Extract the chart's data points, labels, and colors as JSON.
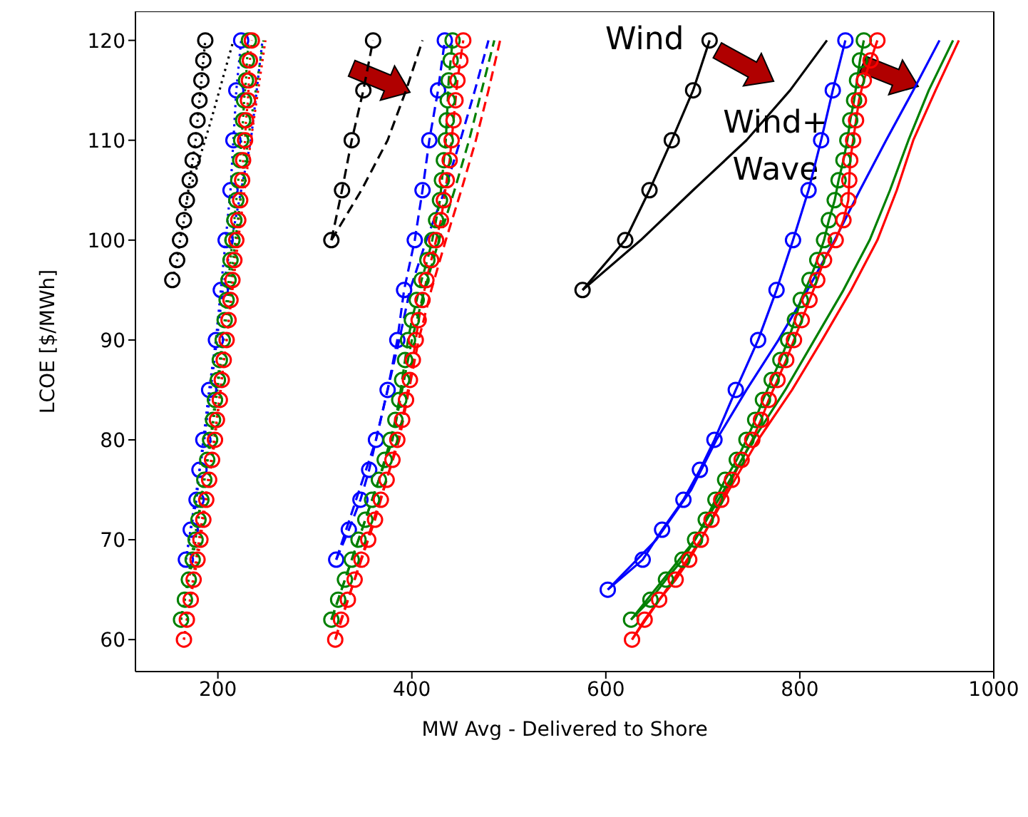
{
  "chart_data": {
    "type": "line",
    "xlabel": "MW Avg - Delivered to Shore",
    "ylabel": "LCOE [$/MWh]",
    "xlim": [
      115,
      1000
    ],
    "ylim": [
      56.8,
      122.9
    ],
    "xticks": [
      200,
      400,
      600,
      800,
      1000
    ],
    "yticks": [
      60,
      70,
      80,
      90,
      100,
      110,
      120
    ],
    "grid": false,
    "legend": false,
    "annotations": [
      "Wind",
      "Wind+\nWave"
    ],
    "series": [
      {
        "color": "#000000",
        "marker": "circle",
        "line_style": "dotted",
        "x": [
          153,
          158,
          161,
          165,
          168,
          171,
          174,
          177,
          179,
          181,
          183,
          185,
          187
        ],
        "values": [
          96,
          98,
          100,
          102,
          104,
          106,
          108,
          110,
          112,
          114,
          116,
          118,
          120
        ]
      },
      {
        "color": "#000000",
        "marker": "none",
        "line_style": "dotted",
        "x": [
          168,
          193,
          216
        ],
        "values": [
          104,
          112,
          120
        ]
      },
      {
        "color": "#0000ff",
        "marker": "circle",
        "line_style": "dotted",
        "x": [
          167,
          172,
          178,
          181,
          185,
          191,
          198,
          203,
          208,
          213,
          216,
          219,
          224
        ],
        "values": [
          68,
          71,
          74,
          77,
          80,
          85,
          90,
          95,
          100,
          105,
          110,
          115,
          120
        ]
      },
      {
        "color": "#0000ff",
        "marker": "none",
        "line_style": "dotted",
        "x": [
          167,
          186,
          199,
          205,
          214,
          224,
          234,
          240,
          246
        ],
        "values": [
          68,
          80,
          90,
          95,
          100,
          105,
          110,
          115,
          120
        ]
      },
      {
        "color": "#008000",
        "marker": "circle",
        "line_style": "dotted",
        "x": [
          162,
          166,
          170,
          174,
          177,
          180,
          183,
          186,
          189,
          192,
          195,
          197,
          200,
          202,
          205,
          207,
          209,
          211,
          213,
          215,
          217,
          219,
          221,
          223,
          224,
          226,
          227,
          229,
          230,
          232
        ],
        "values": [
          62,
          64,
          66,
          68,
          70,
          72,
          74,
          76,
          78,
          80,
          82,
          84,
          86,
          88,
          90,
          92,
          94,
          96,
          98,
          100,
          102,
          104,
          106,
          108,
          110,
          112,
          114,
          116,
          118,
          120
        ]
      },
      {
        "color": "#ff0000",
        "marker": "circle",
        "line_style": "dotted",
        "x": [
          165,
          168,
          172,
          175,
          179,
          182,
          185,
          188,
          191,
          194,
          197,
          199,
          202,
          204,
          206,
          209,
          211,
          213,
          215,
          217,
          219,
          221,
          223,
          225,
          226,
          228,
          229,
          231,
          232,
          233,
          235
        ],
        "values": [
          60,
          62,
          64,
          66,
          68,
          70,
          72,
          74,
          76,
          78,
          80,
          82,
          84,
          86,
          88,
          90,
          92,
          94,
          96,
          98,
          100,
          102,
          104,
          106,
          108,
          110,
          112,
          114,
          116,
          118,
          120
        ]
      },
      {
        "color": "#008000",
        "marker": "none",
        "line_style": "dotted",
        "x": [
          162,
          193,
          206,
          218,
          231,
          247
        ],
        "values": [
          62,
          80,
          90,
          100,
          110,
          120
        ]
      },
      {
        "color": "#ff0000",
        "marker": "none",
        "line_style": "dotted",
        "x": [
          165,
          196,
          209,
          221,
          234,
          249
        ],
        "values": [
          60,
          80,
          90,
          100,
          110,
          120
        ]
      },
      {
        "color": "#000000",
        "marker": "circle",
        "line_style": "dashed",
        "x": [
          317,
          328,
          338,
          350,
          360
        ],
        "values": [
          100,
          105,
          110,
          115,
          120
        ]
      },
      {
        "color": "#000000",
        "marker": "none",
        "line_style": "dashed",
        "x": [
          317,
          348,
          375,
          394,
          411
        ],
        "values": [
          100,
          105,
          110,
          115,
          120
        ]
      },
      {
        "color": "#0000ff",
        "marker": "circle",
        "line_style": "dashed",
        "x": [
          322,
          335,
          347,
          356,
          363,
          375,
          385,
          392,
          403,
          411,
          418,
          427,
          434
        ],
        "values": [
          68,
          71,
          74,
          77,
          80,
          85,
          90,
          95,
          100,
          105,
          110,
          115,
          120
        ]
      },
      {
        "color": "#0000ff",
        "marker": "none",
        "line_style": "dashed",
        "x": [
          322,
          363,
          387,
          398,
          415,
          434,
          450,
          465,
          479
        ],
        "values": [
          68,
          80,
          90,
          95,
          100,
          105,
          110,
          115,
          120
        ]
      },
      {
        "color": "#008000",
        "marker": "circle",
        "line_style": "dashed",
        "x": [
          317,
          324,
          331,
          338,
          345,
          352,
          359,
          366,
          372,
          378,
          383,
          387,
          390,
          393,
          396,
          400,
          405,
          410,
          416,
          421,
          425,
          429,
          431,
          433,
          435,
          436,
          437,
          438,
          440,
          442
        ],
        "values": [
          62,
          64,
          66,
          68,
          70,
          72,
          74,
          76,
          78,
          80,
          82,
          84,
          86,
          88,
          90,
          92,
          94,
          96,
          98,
          100,
          102,
          104,
          106,
          108,
          110,
          112,
          114,
          116,
          118,
          120
        ]
      },
      {
        "color": "#ff0000",
        "marker": "circle",
        "line_style": "dashed",
        "x": [
          321,
          327,
          334,
          341,
          348,
          355,
          362,
          368,
          374,
          380,
          385,
          390,
          394,
          398,
          401,
          404,
          407,
          411,
          415,
          420,
          425,
          430,
          433,
          436,
          439,
          441,
          443,
          445,
          447,
          450,
          453
        ],
        "values": [
          60,
          62,
          64,
          66,
          68,
          70,
          72,
          74,
          76,
          78,
          80,
          82,
          84,
          86,
          88,
          90,
          92,
          94,
          96,
          98,
          100,
          102,
          104,
          106,
          108,
          110,
          112,
          114,
          116,
          118,
          120
        ]
      },
      {
        "color": "#008000",
        "marker": "none",
        "line_style": "dashed",
        "x": [
          317,
          380,
          400,
          413,
          428,
          444,
          459,
          472,
          485
        ],
        "values": [
          62,
          80,
          90,
          95,
          100,
          105,
          110,
          115,
          120
        ]
      },
      {
        "color": "#ff0000",
        "marker": "none",
        "line_style": "dashed",
        "x": [
          321,
          387,
          407,
          420,
          435,
          451,
          466,
          479,
          491
        ],
        "values": [
          60,
          80,
          90,
          95,
          100,
          105,
          110,
          115,
          120
        ]
      },
      {
        "color": "#000000",
        "marker": "circle",
        "line_style": "solid",
        "x": [
          576,
          620,
          645,
          668,
          690,
          707
        ],
        "values": [
          95,
          100,
          105,
          110,
          115,
          120
        ]
      },
      {
        "color": "#000000",
        "marker": "none",
        "line_style": "solid",
        "x": [
          576,
          636,
          690,
          745,
          790,
          828
        ],
        "values": [
          95,
          100,
          105,
          110,
          115,
          120
        ]
      },
      {
        "color": "#0000ff",
        "marker": "circle",
        "line_style": "solid",
        "x": [
          602,
          638,
          658,
          680,
          697,
          712,
          734,
          757,
          776,
          793,
          809,
          822,
          834,
          847
        ],
        "values": [
          65,
          68,
          71,
          74,
          77,
          80,
          85,
          90,
          95,
          100,
          105,
          110,
          115,
          120
        ]
      },
      {
        "color": "#0000ff",
        "marker": "none",
        "line_style": "solid",
        "x": [
          602,
          652,
          688,
          714,
          745,
          778,
          808,
          836,
          862,
          889,
          917,
          944
        ],
        "values": [
          65,
          70,
          75,
          80,
          85,
          90,
          95,
          100,
          105,
          110,
          115,
          120
        ]
      },
      {
        "color": "#008000",
        "marker": "circle",
        "line_style": "solid",
        "x": [
          626,
          646,
          662,
          679,
          692,
          703,
          713,
          723,
          735,
          745,
          754,
          762,
          771,
          780,
          788,
          795,
          801,
          810,
          818,
          825,
          830,
          836,
          840,
          845,
          849,
          852,
          856,
          859,
          862,
          866
        ],
        "values": [
          62,
          64,
          66,
          68,
          70,
          72,
          74,
          76,
          78,
          80,
          82,
          84,
          86,
          88,
          90,
          92,
          94,
          96,
          98,
          100,
          102,
          104,
          106,
          108,
          110,
          112,
          114,
          116,
          118,
          120
        ]
      },
      {
        "color": "#ff0000",
        "marker": "circle",
        "line_style": "solid",
        "x": [
          627,
          640,
          655,
          672,
          686,
          698,
          709,
          719,
          730,
          740,
          751,
          760,
          768,
          777,
          786,
          794,
          802,
          810,
          818,
          825,
          837,
          845,
          850,
          851,
          852,
          855,
          858,
          861,
          866,
          873,
          880
        ],
        "values": [
          60,
          62,
          64,
          66,
          68,
          70,
          72,
          74,
          76,
          78,
          80,
          82,
          84,
          86,
          88,
          90,
          92,
          94,
          96,
          98,
          100,
          102,
          104,
          106,
          108,
          110,
          112,
          114,
          116,
          118,
          120
        ]
      },
      {
        "color": "#008000",
        "marker": "none",
        "line_style": "solid",
        "x": [
          626,
          692,
          728,
          752,
          785,
          815,
          845,
          872,
          893,
          912,
          933,
          958
        ],
        "values": [
          62,
          70,
          76,
          80,
          85,
          90,
          95,
          100,
          105,
          110,
          115,
          120
        ]
      },
      {
        "color": "#ff0000",
        "marker": "none",
        "line_style": "solid",
        "x": [
          627,
          698,
          733,
          757,
          792,
          823,
          853,
          880,
          900,
          917,
          940,
          964
        ],
        "values": [
          60,
          70,
          76,
          80,
          85,
          90,
          95,
          100,
          105,
          110,
          115,
          120
        ]
      }
    ]
  }
}
